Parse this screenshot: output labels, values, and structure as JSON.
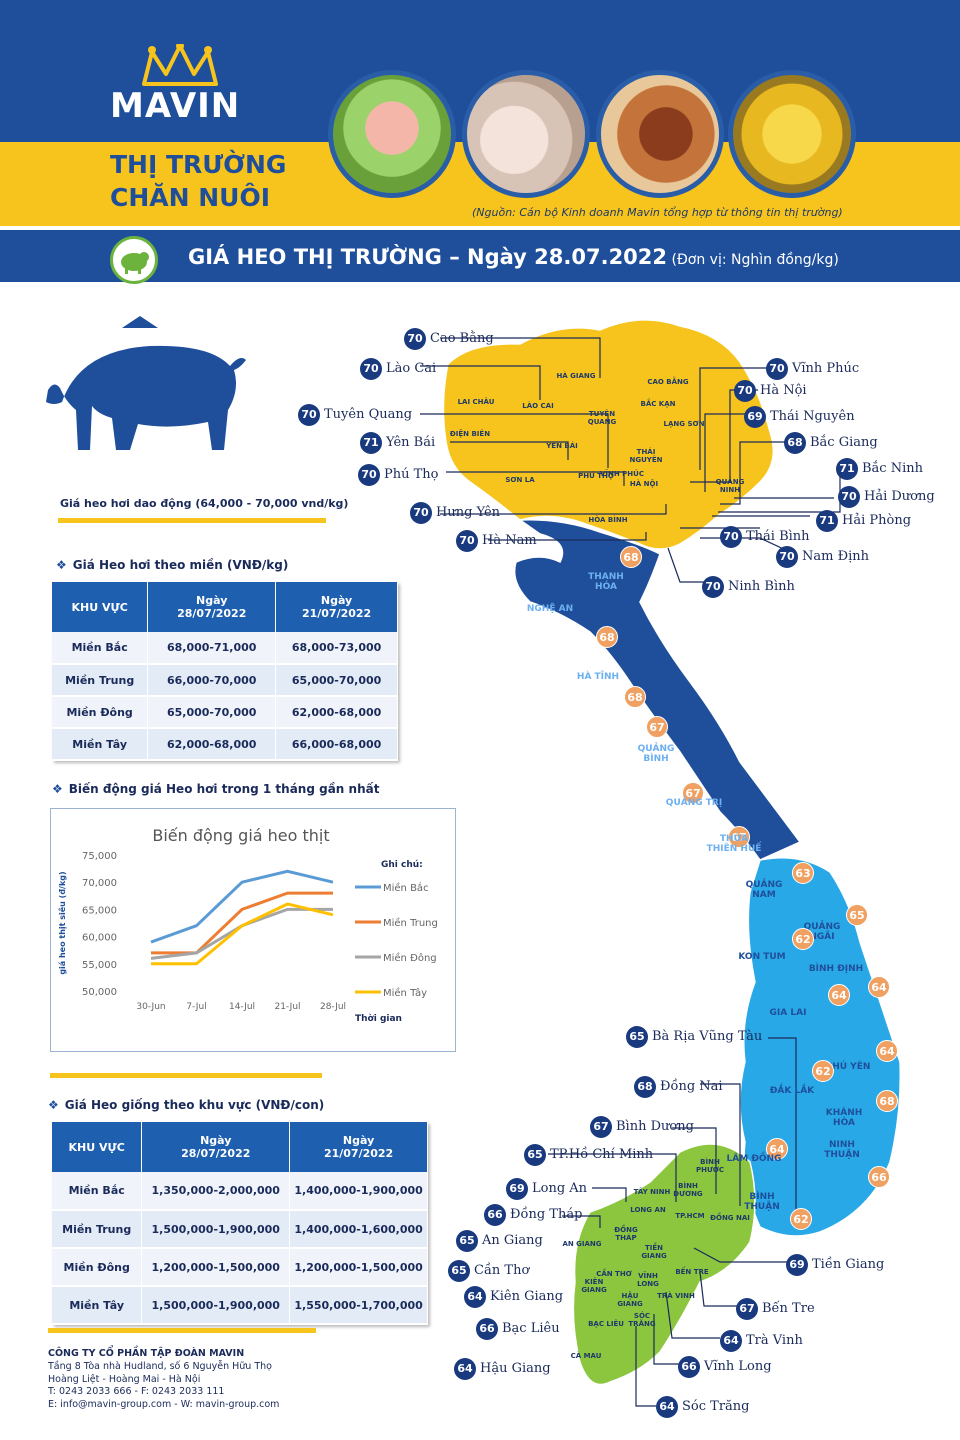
{
  "brand": {
    "logo": "MAVIN",
    "title_line1": "THỊ TRƯỜNG",
    "title_line2": "CHĂN NUÔI",
    "source": "(Nguồn: Cán bộ Kinh doanh Mavin tổng hợp từ thông tin thị trường)"
  },
  "colors": {
    "navy": "#1f4f9b",
    "yellow": "#f6c41c",
    "green": "#8cc63f",
    "sky": "#29a8e8"
  },
  "banner": {
    "title": "GIÁ HEO THỊ TRƯỜNG – Ngày 28.07.2022",
    "unit": " (Đơn vị: Nghìn đồng/kg)"
  },
  "summary": "Giá heo hơi dao động (64,000 - 70,000 vnd/kg)",
  "live_price": {
    "title": "Giá Heo hơi theo miền (VNĐ/kg)",
    "headers": [
      "KHU VỰC",
      "Ngày\n28/07/2022",
      "Ngày\n21/07/2022"
    ],
    "rows": [
      [
        "Miền Bắc",
        "68,000-71,000",
        "68,000-73,000"
      ],
      [
        "Miền Trung",
        "66,000-70,000",
        "65,000-70,000"
      ],
      [
        "Miền Đông",
        "65,000-70,000",
        "62,000-68,000"
      ],
      [
        "Miền Tây",
        "62,000-68,000",
        "66,000-68,000"
      ]
    ]
  },
  "trend_title": "Biến động giá Heo hơi trong 1 tháng gần nhất",
  "chart_data": {
    "type": "line",
    "title": "Biến động giá heo thịt",
    "ylabel": "giá heo thịt siêu (đ/kg)",
    "xlabel": "Thời gian",
    "legend_title": "Ghi chú:",
    "categories": [
      "30-Jun",
      "7-Jul",
      "14-Jul",
      "21-Jul",
      "28-Jul"
    ],
    "yticks": [
      "75,000",
      "70,000",
      "65,000",
      "60,000",
      "55,000",
      "50,000"
    ],
    "ylim": [
      50000,
      75000
    ],
    "grid": false,
    "legend_position": "right",
    "series": [
      {
        "name": "Miền Bắc",
        "color": "#5b9bd5",
        "values": [
          59000,
          62000,
          70000,
          72000,
          70000
        ]
      },
      {
        "name": "Miền Trung",
        "color": "#ed7d31",
        "values": [
          57000,
          57000,
          65000,
          68000,
          68000
        ]
      },
      {
        "name": "Miền Đông",
        "color": "#a5a5a5",
        "values": [
          56000,
          57000,
          62000,
          65000,
          65000
        ]
      },
      {
        "name": "Miền Tây",
        "color": "#ffc000",
        "values": [
          55000,
          55000,
          62000,
          66000,
          64000
        ]
      }
    ]
  },
  "breed_price": {
    "title": "Giá Heo giống theo khu vực (VNĐ/con)",
    "headers": [
      "KHU VỰC",
      "Ngày\n28/07/2022",
      "Ngày\n21/07/2022"
    ],
    "rows": [
      [
        "Miền Bắc",
        "1,350,000-2,000,000",
        "1,400,000-1,900,000"
      ],
      [
        "Miền Trung",
        "1,500,000-1,900,000",
        "1,400,000-1,600,000"
      ],
      [
        "Miền Đông",
        "1,200,000-1,500,000",
        "1,200,000-1,500,000"
      ],
      [
        "Miền Tây",
        "1,500,000-1,900,000",
        "1,550,000-1,700,000"
      ]
    ]
  },
  "company": {
    "name": "CÔNG TY CỔ PHẦN TẬP ĐOÀN MAVIN",
    "addr1": "Tầng 8 Tòa nhà Hudland, số 6 Nguyễn Hữu Thọ",
    "addr2": "Hoàng Liệt - Hoàng Mai - Hà Nội",
    "phone": "T: 0243 2033 666 - F: 0243 2033 111",
    "web": "E: info@mavin-group.com -  W: mavin-group.com"
  },
  "map_prices": [
    {
      "name": "Cao Bằng",
      "value": "70"
    },
    {
      "name": "Lào Cai",
      "value": "70"
    },
    {
      "name": "Vĩnh Phúc",
      "value": "70"
    },
    {
      "name": "Hà Nội",
      "value": "70"
    },
    {
      "name": "Tuyên Quang",
      "value": "70"
    },
    {
      "name": "Thái Nguyên",
      "value": "69"
    },
    {
      "name": "Yên Bái",
      "value": "71"
    },
    {
      "name": "Bắc Giang",
      "value": "68"
    },
    {
      "name": "Phú Thọ",
      "value": "70"
    },
    {
      "name": "Bắc Ninh",
      "value": "71"
    },
    {
      "name": "Hải Dương",
      "value": "70"
    },
    {
      "name": "Hưng Yên",
      "value": "70"
    },
    {
      "name": "Hải Phòng",
      "value": "71"
    },
    {
      "name": "Thái Bình",
      "value": "70"
    },
    {
      "name": "Hà Nam",
      "value": "70"
    },
    {
      "name": "Nam Định",
      "value": "70"
    },
    {
      "name": "Ninh Bình",
      "value": "70"
    },
    {
      "name": "Bà Rịa Vũng Tàu",
      "value": "65"
    },
    {
      "name": "Đồng Nai",
      "value": "68"
    },
    {
      "name": "Bình Dương",
      "value": "67"
    },
    {
      "name": "TP.Hồ Chí Minh",
      "value": "65"
    },
    {
      "name": "Long An",
      "value": "69"
    },
    {
      "name": "Đồng Tháp",
      "value": "66"
    },
    {
      "name": "An Giang",
      "value": "65"
    },
    {
      "name": "Cần Thơ",
      "value": "65"
    },
    {
      "name": "Tiền Giang",
      "value": "69"
    },
    {
      "name": "Kiên Giang",
      "value": "64"
    },
    {
      "name": "Bến Tre",
      "value": "67"
    },
    {
      "name": "Bạc Liêu",
      "value": "66"
    },
    {
      "name": "Trà Vinh",
      "value": "64"
    },
    {
      "name": "Hậu Giang",
      "value": "64"
    },
    {
      "name": "Vĩnh Long",
      "value": "66"
    },
    {
      "name": "Sóc Trăng",
      "value": "64"
    }
  ],
  "central_prices": [
    {
      "prov": "THANH HÓA",
      "value": "68"
    },
    {
      "prov": "NGHỆ AN",
      "value": "68"
    },
    {
      "prov": "HÀ TĨNH",
      "value": "68"
    },
    {
      "prov": "QUẢNG BÌNH",
      "value": "67"
    },
    {
      "prov": "QUẢNG TRỊ",
      "value": "67"
    },
    {
      "prov": "THỪA THIÊN HUẾ",
      "value": "67"
    },
    {
      "prov": "QUẢNG NAM",
      "value": "63"
    },
    {
      "prov": "QUẢNG NGÃI",
      "value": "65"
    },
    {
      "prov": "KON TUM",
      "value": "62"
    },
    {
      "prov": "BÌNH ĐỊNH",
      "value": "64"
    },
    {
      "prov": "GIA LAI",
      "value": "64"
    },
    {
      "prov": "PHÚ YÊN",
      "value": "64"
    },
    {
      "prov": "ĐẮK LẮK",
      "value": "62"
    },
    {
      "prov": "KHÁNH HÒA",
      "value": "68"
    },
    {
      "prov": "LÂM ĐỒNG",
      "value": "64"
    },
    {
      "prov": "NINH THUẬN",
      "value": "66"
    },
    {
      "prov": "BÌNH THUẬN",
      "value": "62"
    }
  ],
  "map_labels": {
    "north": [
      "HÀ GIANG",
      "CAO BẰNG",
      "LAI CHÂU",
      "LÀO CAI",
      "TUYÊN QUANG",
      "BẮC KẠN",
      "LẠNG SƠN",
      "ĐIỆN BIÊN",
      "YÊN BÁI",
      "THÁI NGUYÊN",
      "SƠN LA",
      "PHÚ THỌ",
      "VĨNH PHÚC",
      "HÀ NỘI",
      "QUẢNG NINH",
      "HÒA BÌNH"
    ],
    "south": [
      "BÌNH PHƯỚC",
      "BÌNH DƯƠNG",
      "ĐỒNG NAI",
      "TÂY NINH",
      "LONG AN",
      "ĐỒNG THÁP",
      "AN GIANG",
      "TIỀN GIANG",
      "KIÊN GIANG",
      "CẦN THƠ",
      "VĨNH LONG",
      "HẬU GIANG",
      "TRÀ VINH",
      "SÓC TRĂNG",
      "BẠC LIÊU",
      "CÀ MAU",
      "BẾN TRE",
      "TP.HCM"
    ]
  }
}
